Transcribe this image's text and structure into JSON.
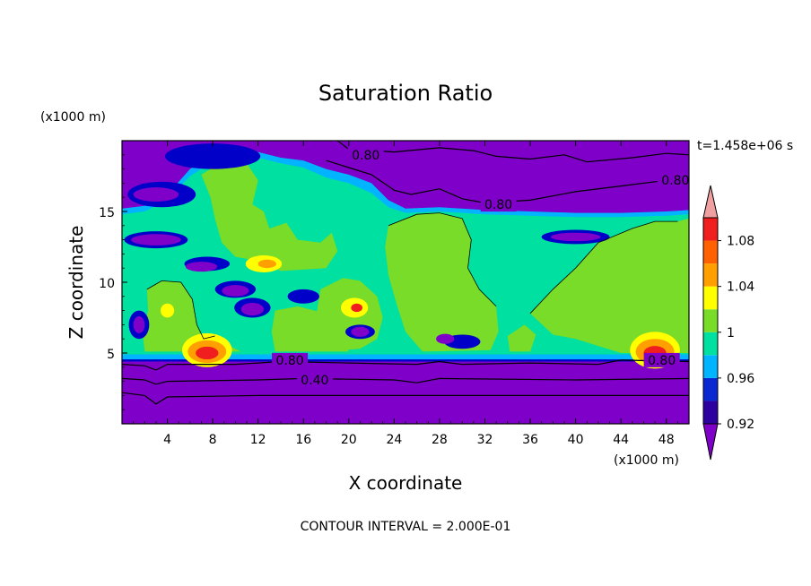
{
  "chart_data": {
    "type": "heatmap",
    "title": "Saturation Ratio",
    "xlabel": "X coordinate",
    "ylabel": "Z coordinate",
    "x_units": "(x1000 m)",
    "y_units": "(x1000 m)",
    "time_label": "t=1.458e+06 s",
    "footer": "CONTOUR INTERVAL = 2.000E-01",
    "xlim": [
      0,
      50
    ],
    "ylim": [
      0,
      20
    ],
    "x_ticks": [
      4,
      8,
      12,
      16,
      20,
      24,
      28,
      32,
      36,
      40,
      44,
      48
    ],
    "y_ticks": [
      5,
      10,
      15
    ],
    "contour_labels": [
      {
        "text": "0.80",
        "x": 21.5,
        "z": 19.0
      },
      {
        "text": "0.80",
        "x": 48.8,
        "z": 17.2
      },
      {
        "text": "0.80",
        "x": 33.2,
        "z": 15.5
      },
      {
        "text": "0.80",
        "x": 14.8,
        "z": 4.5
      },
      {
        "text": "0.80",
        "x": 47.6,
        "z": 4.5
      },
      {
        "text": "0.40",
        "x": 17.0,
        "z": 3.1
      }
    ],
    "colorbar": {
      "levels": [
        0.92,
        0.94,
        0.96,
        0.98,
        1.0,
        1.02,
        1.04,
        1.06,
        1.08,
        1.1
      ],
      "labels": [
        "0.92",
        "0.96",
        "1",
        "1.04",
        "1.08"
      ],
      "colors": [
        "#7f00c8",
        "#2d00a0",
        "#0a28d2",
        "#00b4ff",
        "#00e0a0",
        "#78dc28",
        "#ffff00",
        "#ffa000",
        "#ff6000",
        "#f01e1e",
        "#f0a0a0"
      ]
    },
    "field_colors": {
      "dry": "#7f00c8",
      "low": "#0000c8",
      "mid": "#00b4ff",
      "near_sat": "#00e0a0",
      "sat": "#78dc28",
      "super": "#ffff00",
      "high": "#ffa000",
      "max": "#f01e1e"
    }
  }
}
